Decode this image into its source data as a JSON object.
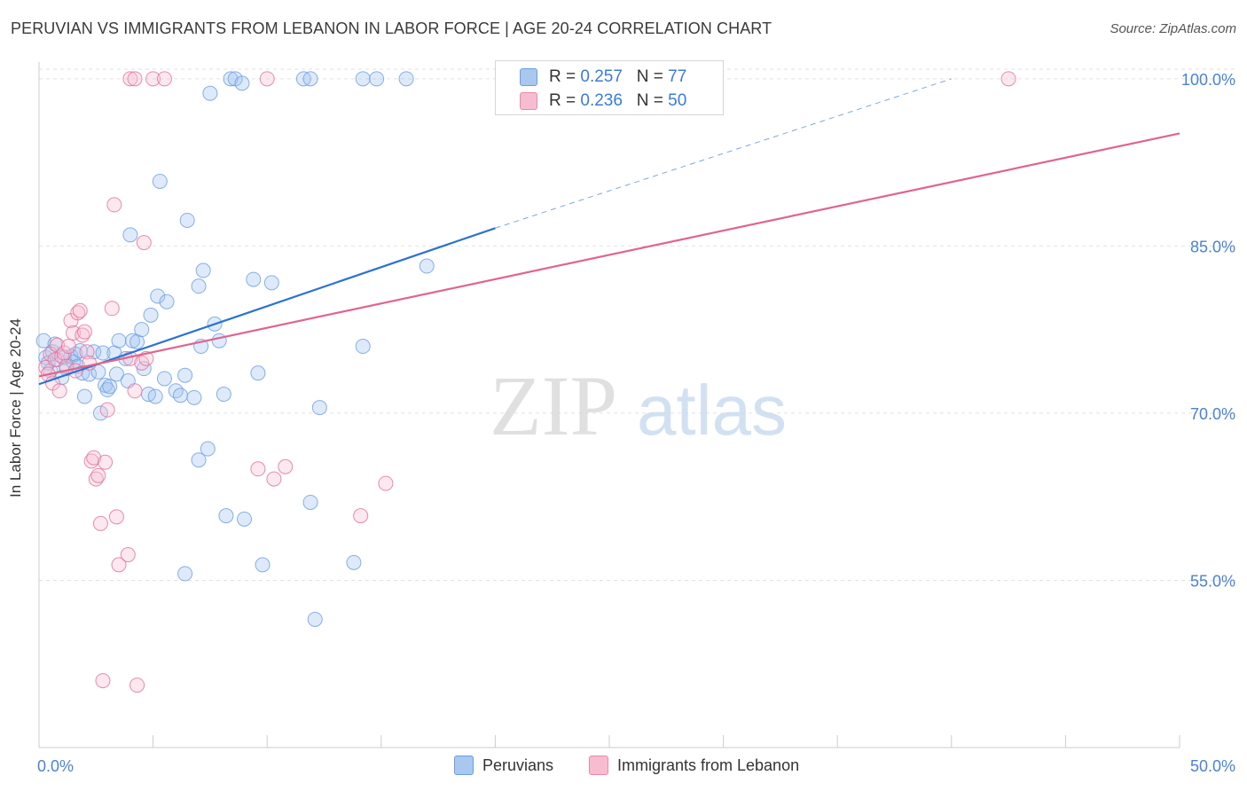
{
  "header": {
    "title": "PERUVIAN VS IMMIGRANTS FROM LEBANON IN LABOR FORCE | AGE 20-24 CORRELATION CHART",
    "source": "Source: ZipAtlas.com"
  },
  "watermark": {
    "zip": "ZIP",
    "atlas": "atlas"
  },
  "stats_legend": [
    {
      "r_label": "R =",
      "r_value": "0.257",
      "n_label": "N =",
      "n_value": "77",
      "color": "#a9c8f0",
      "border": "#6a9ee0"
    },
    {
      "r_label": "R =",
      "r_value": "0.236",
      "n_label": "N =",
      "n_value": "50",
      "color": "#f7bcd0",
      "border": "#e889aa"
    }
  ],
  "bottom_legend": [
    {
      "label": "Peruvians",
      "color": "#a9c8f0",
      "border": "#6a9ee0"
    },
    {
      "label": "Immigrants from Lebanon",
      "color": "#f7bcd0",
      "border": "#e889aa"
    }
  ],
  "chart_data": {
    "type": "scatter",
    "title": "PERUVIAN VS IMMIGRANTS FROM LEBANON IN LABOR FORCE | AGE 20-24 CORRELATION CHART",
    "xlabel": "",
    "ylabel": "In Labor Force | Age 20-24",
    "xlim": [
      0,
      50
    ],
    "ylim": [
      40,
      101.5
    ],
    "x_tick_labels": [
      "0.0%",
      "50.0%"
    ],
    "y_ticks": [
      55,
      70,
      85,
      100
    ],
    "y_tick_labels": [
      "55.0%",
      "70.0%",
      "85.0%",
      "100.0%"
    ],
    "grid": true,
    "legend_position": "top-center",
    "series": [
      {
        "name": "Peruvians",
        "color": "#6a9ee0",
        "fill": "rgba(160,196,240,0.35)",
        "trend": {
          "x": [
            0,
            20
          ],
          "y": [
            72.6,
            86.6
          ],
          "dashed_to": [
            40,
            100
          ]
        },
        "points": [
          [
            0.2,
            76.5
          ],
          [
            0.3,
            75
          ],
          [
            0.4,
            74.5
          ],
          [
            0.5,
            73.8
          ],
          [
            0.6,
            75.5
          ],
          [
            0.7,
            76.2
          ],
          [
            0.8,
            74.8
          ],
          [
            1.0,
            73.2
          ],
          [
            1.1,
            75
          ],
          [
            1.2,
            74
          ],
          [
            1.4,
            75.1
          ],
          [
            1.5,
            74.6
          ],
          [
            1.6,
            75.3
          ],
          [
            1.7,
            74.2
          ],
          [
            1.8,
            75.6
          ],
          [
            1.9,
            73.6
          ],
          [
            2.0,
            71.5
          ],
          [
            2.2,
            73.5
          ],
          [
            2.4,
            75.5
          ],
          [
            2.6,
            73.7
          ],
          [
            2.7,
            70
          ],
          [
            2.8,
            75.4
          ],
          [
            2.9,
            72.5
          ],
          [
            3.0,
            72.1
          ],
          [
            3.1,
            72.4
          ],
          [
            3.3,
            75.4
          ],
          [
            3.4,
            73.5
          ],
          [
            3.5,
            76.5
          ],
          [
            3.8,
            74.9
          ],
          [
            3.9,
            72.9
          ],
          [
            4.0,
            86
          ],
          [
            4.1,
            76.5
          ],
          [
            4.3,
            76.4
          ],
          [
            4.5,
            77.5
          ],
          [
            4.6,
            74
          ],
          [
            4.8,
            71.7
          ],
          [
            4.9,
            78.8
          ],
          [
            5.1,
            71.5
          ],
          [
            5.2,
            80.5
          ],
          [
            5.3,
            90.8
          ],
          [
            5.5,
            73.1
          ],
          [
            5.6,
            80
          ],
          [
            6.0,
            72
          ],
          [
            6.2,
            71.6
          ],
          [
            6.4,
            73.4
          ],
          [
            6.5,
            87.3
          ],
          [
            6.8,
            71.4
          ],
          [
            7.0,
            81.4
          ],
          [
            7.1,
            76
          ],
          [
            7.2,
            82.8
          ],
          [
            7.4,
            66.8
          ],
          [
            7.5,
            98.7
          ],
          [
            7.7,
            78
          ],
          [
            7.9,
            76.5
          ],
          [
            8.1,
            71.7
          ],
          [
            8.2,
            60.8
          ],
          [
            8.4,
            100
          ],
          [
            8.6,
            100
          ],
          [
            8.9,
            99.6
          ],
          [
            9.0,
            60.5
          ],
          [
            9.4,
            82
          ],
          [
            9.6,
            73.6
          ],
          [
            9.8,
            56.4
          ],
          [
            10.2,
            81.7
          ],
          [
            11.6,
            100
          ],
          [
            11.9,
            100
          ],
          [
            11.9,
            62
          ],
          [
            12.1,
            51.5
          ],
          [
            12.3,
            70.5
          ],
          [
            13.8,
            56.6
          ],
          [
            14.2,
            76
          ],
          [
            14.2,
            100
          ],
          [
            14.8,
            100
          ],
          [
            16.1,
            100
          ],
          [
            17.0,
            83.2
          ],
          [
            6.4,
            55.6
          ],
          [
            7.0,
            65.8
          ]
        ]
      },
      {
        "name": "Immigrants from Lebanon",
        "color": "#e2709a",
        "fill": "rgba(247,188,208,0.35)",
        "trend": {
          "x": [
            0,
            50
          ],
          "y": [
            73.3,
            95.1
          ]
        },
        "points": [
          [
            0.3,
            74.1
          ],
          [
            0.4,
            73.5
          ],
          [
            0.5,
            75.3
          ],
          [
            0.6,
            72.7
          ],
          [
            0.7,
            74.8
          ],
          [
            0.8,
            76.1
          ],
          [
            0.9,
            72
          ],
          [
            1.0,
            75.1
          ],
          [
            1.1,
            75.4
          ],
          [
            1.2,
            74.2
          ],
          [
            1.3,
            76
          ],
          [
            1.4,
            78.3
          ],
          [
            1.5,
            77.2
          ],
          [
            1.6,
            73.8
          ],
          [
            1.7,
            79
          ],
          [
            1.8,
            79.2
          ],
          [
            1.9,
            77
          ],
          [
            2.0,
            77.3
          ],
          [
            2.1,
            75.5
          ],
          [
            2.2,
            74.5
          ],
          [
            2.3,
            65.7
          ],
          [
            2.4,
            66
          ],
          [
            2.5,
            64.1
          ],
          [
            2.6,
            64.4
          ],
          [
            2.7,
            60.1
          ],
          [
            2.8,
            46
          ],
          [
            2.9,
            65.6
          ],
          [
            3.0,
            70.3
          ],
          [
            3.2,
            79.4
          ],
          [
            3.3,
            88.7
          ],
          [
            3.4,
            60.7
          ],
          [
            3.5,
            56.4
          ],
          [
            3.9,
            57.3
          ],
          [
            4.0,
            74.9
          ],
          [
            4.2,
            72
          ],
          [
            4.3,
            45.6
          ],
          [
            4.5,
            74.5
          ],
          [
            4.6,
            85.3
          ],
          [
            4.7,
            74.9
          ],
          [
            4.0,
            100
          ],
          [
            4.2,
            100
          ],
          [
            5.0,
            100
          ],
          [
            5.5,
            100
          ],
          [
            9.6,
            65
          ],
          [
            10.0,
            100
          ],
          [
            10.3,
            64.1
          ],
          [
            10.8,
            65.2
          ],
          [
            14.1,
            60.8
          ],
          [
            15.2,
            63.7
          ],
          [
            42.5,
            100
          ]
        ]
      }
    ]
  }
}
